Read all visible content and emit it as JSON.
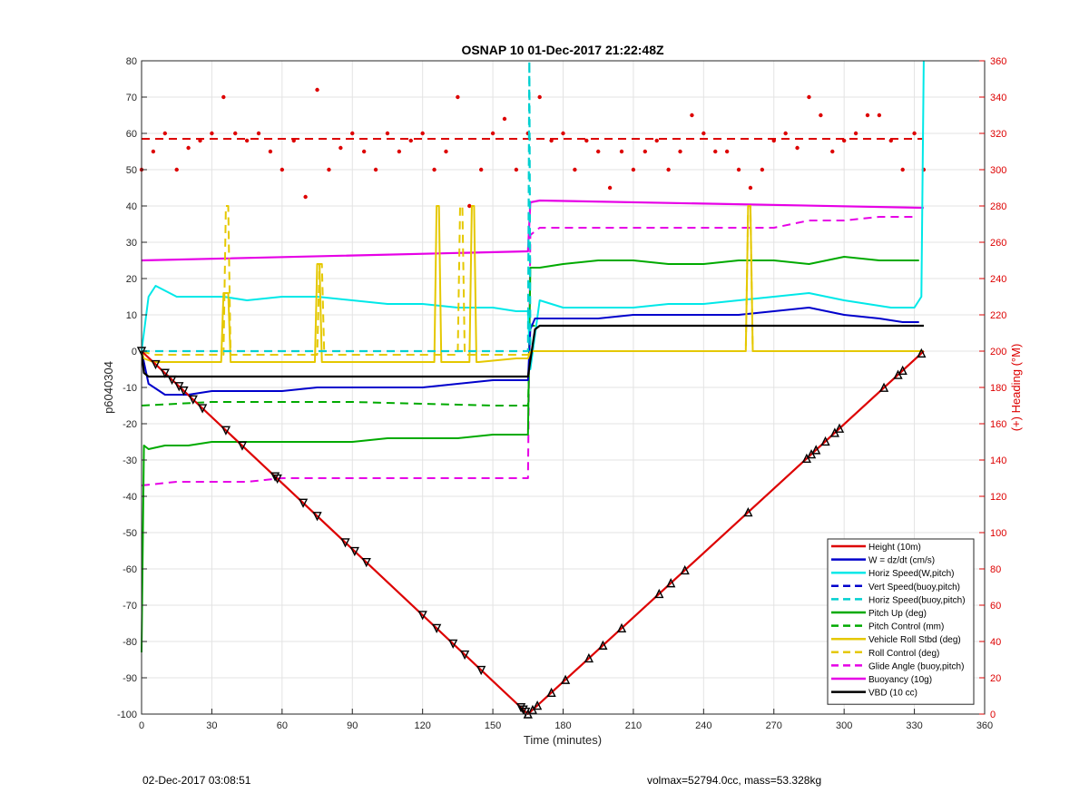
{
  "chart_data": {
    "type": "line",
    "title": "OSNAP 10 01-Dec-2017 21:22:48Z",
    "xlabel": "Time (minutes)",
    "ylabel": "p6040304",
    "y2label": "(+) Heading (°M)",
    "xlim": [
      0,
      360
    ],
    "ylim": [
      -100,
      80
    ],
    "y2lim": [
      0,
      360
    ],
    "xticks": [
      0,
      30,
      60,
      90,
      120,
      150,
      180,
      210,
      240,
      270,
      300,
      330,
      360
    ],
    "yticks": [
      -100,
      -90,
      -80,
      -70,
      -60,
      -50,
      -40,
      -30,
      -20,
      -10,
      0,
      10,
      20,
      30,
      40,
      50,
      60,
      70,
      80
    ],
    "y2ticks": [
      0,
      20,
      40,
      60,
      80,
      100,
      120,
      140,
      160,
      180,
      200,
      220,
      240,
      260,
      280,
      300,
      320,
      340,
      360
    ],
    "grid": true,
    "legend_position": "bottom-right",
    "series": [
      {
        "name": "Height (10m)",
        "color": "#dd0000",
        "style": "solid",
        "width": 2.2,
        "x": [
          0,
          165,
          334
        ],
        "y": [
          0,
          -100,
          0
        ]
      },
      {
        "name": "W = dz/dt (cm/s)",
        "color": "#0000cc",
        "style": "solid",
        "width": 2,
        "x": [
          0,
          3,
          10,
          20,
          30,
          45,
          60,
          75,
          90,
          105,
          120,
          135,
          150,
          160,
          165,
          166,
          168,
          180,
          195,
          210,
          225,
          240,
          255,
          270,
          285,
          300,
          315,
          325,
          332
        ],
        "y": [
          0,
          -9,
          -12,
          -12,
          -11,
          -11,
          -11,
          -10,
          -10,
          -10,
          -10,
          -9,
          -8,
          -8,
          -8,
          6,
          9,
          9,
          9,
          10,
          10,
          10,
          10,
          11,
          12,
          10,
          9,
          8,
          8
        ]
      },
      {
        "name": "Horiz Speed(W,pitch)",
        "color": "#00e8e8",
        "style": "solid",
        "width": 2,
        "x": [
          0,
          3,
          6,
          15,
          25,
          35,
          45,
          60,
          75,
          90,
          105,
          120,
          135,
          150,
          160,
          165,
          166,
          170,
          180,
          195,
          210,
          225,
          240,
          255,
          270,
          285,
          300,
          310,
          320,
          330,
          333,
          334
        ],
        "y": [
          0,
          15,
          18,
          15,
          15,
          15,
          14,
          15,
          15,
          14,
          13,
          13,
          12,
          12,
          11,
          11,
          -5,
          14,
          12,
          12,
          12,
          13,
          13,
          14,
          15,
          16,
          14,
          13,
          12,
          12,
          15,
          80
        ]
      },
      {
        "name": "Vert Speed(buoy,pitch)",
        "color": "#0000cc",
        "style": "dashed",
        "width": 2,
        "x": [
          0,
          165
        ],
        "y": [
          0,
          0
        ]
      },
      {
        "name": "Horiz Speed(buoy,pitch)",
        "color": "#00d0d0",
        "style": "dashed",
        "width": 2.2,
        "x": [
          0,
          164,
          165,
          165.6,
          166
        ],
        "y": [
          0,
          0,
          0,
          80,
          0
        ]
      },
      {
        "name": "Pitch Up (deg)",
        "color": "#00aa00",
        "style": "solid",
        "width": 2,
        "x": [
          0,
          1,
          3,
          10,
          20,
          30,
          45,
          60,
          75,
          90,
          105,
          120,
          135,
          150,
          160,
          165,
          166,
          170,
          180,
          195,
          210,
          225,
          240,
          255,
          270,
          285,
          300,
          315,
          325,
          332
        ],
        "y": [
          -83,
          -26,
          -27,
          -26,
          -26,
          -25,
          -25,
          -25,
          -25,
          -25,
          -24,
          -24,
          -24,
          -23,
          -23,
          -23,
          23,
          23,
          24,
          25,
          25,
          24,
          24,
          25,
          25,
          24,
          26,
          25,
          25,
          25
        ]
      },
      {
        "name": "Pitch Control (mm)",
        "color": "#00aa00",
        "style": "dashed",
        "width": 2,
        "x": [
          0,
          30,
          90,
          150,
          165,
          166,
          200,
          260,
          334
        ],
        "y": [
          -15,
          -14,
          -14,
          -15,
          -15,
          7,
          7,
          7,
          7
        ]
      },
      {
        "name": "Vehicle Roll Stbd (deg)",
        "color": "#e5c800",
        "style": "solid",
        "width": 2,
        "x": [
          0,
          1,
          5,
          20,
          34,
          35,
          36,
          37,
          38,
          50,
          70,
          74,
          75,
          76,
          77,
          90,
          120,
          125,
          126,
          127,
          128,
          140,
          141,
          142,
          143,
          144,
          160,
          165,
          166,
          200,
          240,
          258,
          259,
          260,
          261,
          290,
          320,
          330,
          334
        ],
        "y": [
          0,
          -2,
          -3,
          -3,
          -3,
          16,
          16,
          16,
          -3,
          -3,
          -3,
          -3,
          24,
          24,
          -3,
          -3,
          -3,
          -3,
          40,
          40,
          -3,
          -3,
          40,
          40,
          -3,
          -3,
          -2,
          -2,
          0,
          0,
          0,
          0,
          40,
          40,
          0,
          0,
          0,
          0,
          0
        ]
      },
      {
        "name": "Roll Control (deg)",
        "color": "#e5c800",
        "style": "dashed",
        "width": 2,
        "x": [
          0,
          5,
          35,
          36,
          37,
          38,
          60,
          75,
          76,
          77,
          78,
          130,
          135,
          136,
          137,
          138,
          165,
          166,
          200,
          258,
          259,
          260,
          261,
          300,
          334
        ],
        "y": [
          0,
          -1,
          -1,
          40,
          40,
          -1,
          -1,
          -1,
          24,
          24,
          -1,
          -1,
          -1,
          40,
          40,
          -1,
          -1,
          0,
          0,
          0,
          40,
          40,
          0,
          0,
          0
        ]
      },
      {
        "name": "Glide Angle (buoy,pitch)",
        "color": "#e600e6",
        "style": "dashed",
        "width": 2,
        "x": [
          0,
          15,
          30,
          45,
          60,
          75,
          90,
          105,
          120,
          135,
          150,
          165,
          166,
          170,
          180,
          195,
          210,
          225,
          240,
          255,
          270,
          285,
          300,
          315,
          330
        ],
        "y": [
          -37,
          -36,
          -36,
          -36,
          -35,
          -35,
          -35,
          -35,
          -35,
          -35,
          -35,
          -35,
          32,
          34,
          34,
          34,
          34,
          34,
          34,
          34,
          34,
          36,
          36,
          37,
          37
        ]
      },
      {
        "name": "Buoyancy (10g)",
        "color": "#e600e6",
        "style": "solid",
        "width": 2.2,
        "x": [
          0,
          165,
          166,
          170,
          334
        ],
        "y": [
          25,
          27.5,
          41,
          41.5,
          39.5
        ]
      },
      {
        "name": "VBD (10 cc)",
        "color": "#000000",
        "style": "solid",
        "width": 2.2,
        "x": [
          0,
          1,
          3,
          165,
          168,
          170,
          334
        ],
        "y": [
          0,
          -6,
          -7,
          -7,
          6,
          7,
          7
        ]
      }
    ],
    "heading_series": {
      "color": "#dd0000",
      "style": "dotted",
      "x": [
        0,
        5,
        10,
        15,
        20,
        25,
        30,
        35,
        40,
        45,
        50,
        55,
        60,
        65,
        70,
        75,
        80,
        85,
        90,
        95,
        100,
        105,
        110,
        115,
        120,
        125,
        130,
        135,
        140,
        145,
        150,
        155,
        160,
        165,
        170,
        175,
        180,
        185,
        190,
        195,
        200,
        205,
        210,
        215,
        220,
        225,
        230,
        235,
        240,
        245,
        250,
        255,
        260,
        265,
        270,
        275,
        280,
        285,
        290,
        295,
        300,
        305,
        310,
        315,
        320,
        325,
        330,
        334
      ],
      "y": [
        300,
        310,
        320,
        300,
        312,
        316,
        320,
        340,
        320,
        316,
        320,
        310,
        300,
        316,
        285,
        344,
        300,
        312,
        320,
        310,
        300,
        320,
        310,
        316,
        320,
        300,
        310,
        340,
        280,
        300,
        320,
        328,
        300,
        320,
        340,
        316,
        320,
        300,
        316,
        310,
        290,
        310,
        300,
        310,
        316,
        300,
        310,
        330,
        320,
        310,
        310,
        300,
        290,
        300,
        316,
        320,
        312,
        340,
        330,
        310,
        316,
        320,
        330,
        330,
        316,
        300,
        320,
        300
      ]
    },
    "heading_mean": {
      "color": "#dd0000",
      "style": "dashed",
      "y": 317
    },
    "markers": {
      "x": [
        0,
        6,
        10,
        13,
        16,
        18,
        22,
        26,
        36,
        43,
        57,
        58,
        69,
        75,
        87,
        91,
        96,
        120,
        126,
        133,
        138,
        145,
        162,
        163,
        164,
        165,
        167,
        169,
        175,
        181,
        191,
        197,
        205,
        221,
        226,
        232,
        259,
        284,
        286,
        288,
        292,
        296,
        298,
        317,
        323,
        325,
        333
      ]
    }
  },
  "footer": {
    "left": "02-Dec-2017 03:08:51",
    "right": "volmax=52794.0cc, mass=53.328kg"
  }
}
